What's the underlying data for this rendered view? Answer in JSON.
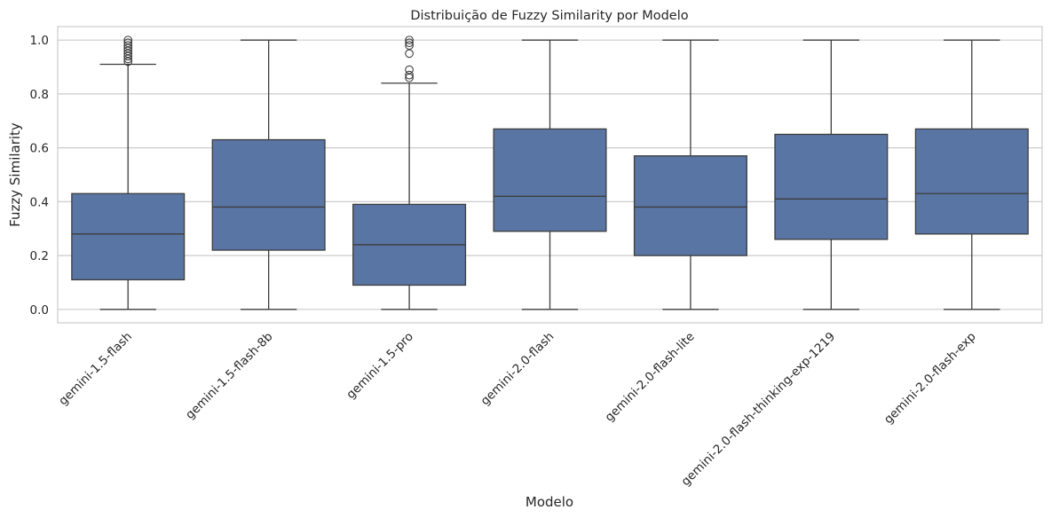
{
  "chart_data": {
    "type": "box",
    "title": "Distribuição de Fuzzy Similarity por Modelo",
    "xlabel": "Modelo",
    "ylabel": "Fuzzy Similarity",
    "ylim": [
      -0.05,
      1.05
    ],
    "yticks": [
      0.0,
      0.2,
      0.4,
      0.6,
      0.8,
      1.0
    ],
    "ytick_labels": [
      "0.0",
      "0.2",
      "0.4",
      "0.6",
      "0.8",
      "1.0"
    ],
    "grid": true,
    "box_color": "#5975a4",
    "edge_color": "#3d3d3d",
    "grid_color": "#cccccc",
    "categories": [
      "gemini-1.5-flash",
      "gemini-1.5-flash-8b",
      "gemini-1.5-pro",
      "gemini-2.0-flash",
      "gemini-2.0-flash-lite",
      "gemini-2.0-flash-thinking-exp-1219",
      "gemini-2.0-flash-exp"
    ],
    "boxes": [
      {
        "whisker_low": 0.0,
        "q1": 0.11,
        "median": 0.28,
        "q3": 0.43,
        "whisker_high": 0.91,
        "outliers": [
          0.92,
          0.93,
          0.94,
          0.95,
          0.96,
          0.97,
          0.98,
          0.99,
          1.0
        ]
      },
      {
        "whisker_low": 0.0,
        "q1": 0.22,
        "median": 0.38,
        "q3": 0.63,
        "whisker_high": 1.0,
        "outliers": []
      },
      {
        "whisker_low": 0.0,
        "q1": 0.09,
        "median": 0.24,
        "q3": 0.39,
        "whisker_high": 0.84,
        "outliers": [
          0.86,
          0.87,
          0.89,
          0.95,
          0.98,
          0.99,
          1.0
        ]
      },
      {
        "whisker_low": 0.0,
        "q1": 0.29,
        "median": 0.42,
        "q3": 0.67,
        "whisker_high": 1.0,
        "outliers": []
      },
      {
        "whisker_low": 0.0,
        "q1": 0.2,
        "median": 0.38,
        "q3": 0.57,
        "whisker_high": 1.0,
        "outliers": []
      },
      {
        "whisker_low": 0.0,
        "q1": 0.26,
        "median": 0.41,
        "q3": 0.65,
        "whisker_high": 1.0,
        "outliers": []
      },
      {
        "whisker_low": 0.0,
        "q1": 0.28,
        "median": 0.43,
        "q3": 0.67,
        "whisker_high": 1.0,
        "outliers": []
      }
    ]
  }
}
